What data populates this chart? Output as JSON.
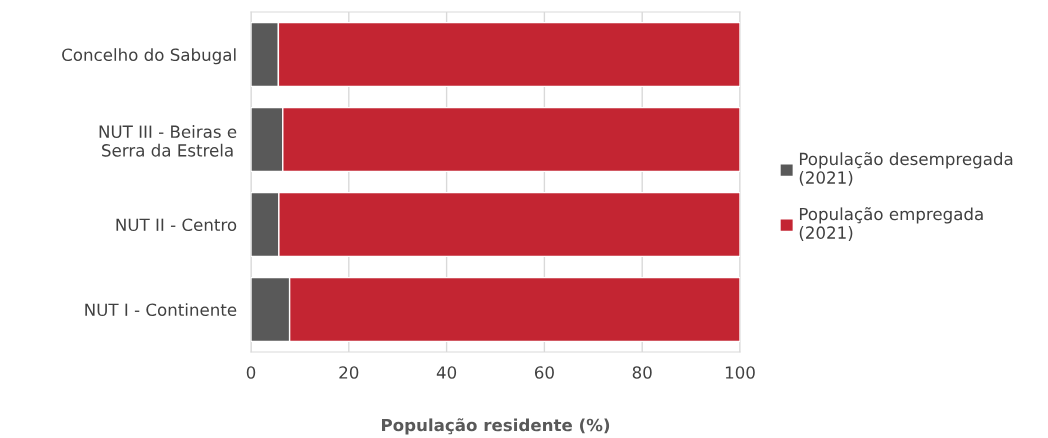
{
  "chart_data": {
    "type": "bar",
    "orientation": "horizontal",
    "stacked": true,
    "xlabel": "População residente (%)",
    "categories": [
      "Concelho do Sabugal",
      "NUT III - Beiras e Serra da Estrela",
      "NUT II - Centro",
      "NUT I - Continente"
    ],
    "series": [
      {
        "name": "População desempregada (2021)",
        "color": "#595959",
        "values": [
          5.6,
          6.5,
          5.7,
          7.9
        ]
      },
      {
        "name": "População empregada (2021)",
        "color": "#c32532",
        "values": [
          94.4,
          93.5,
          94.3,
          92.1
        ]
      }
    ],
    "xlim": [
      0,
      100
    ],
    "xticks": [
      0,
      20,
      40,
      60,
      80,
      100
    ],
    "grid": "x",
    "legend": "right"
  }
}
